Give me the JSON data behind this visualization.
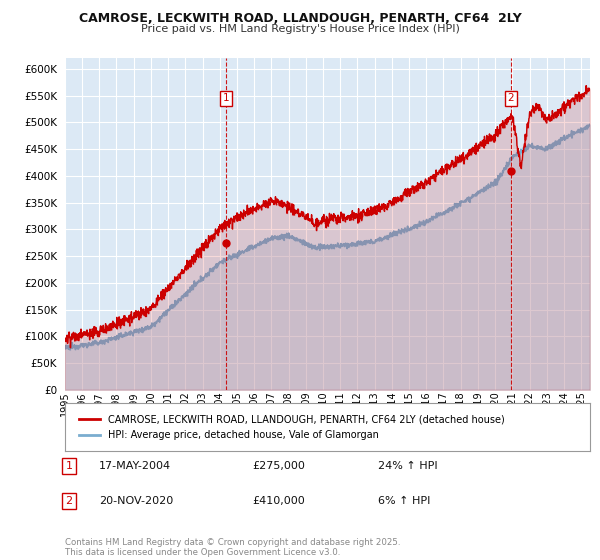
{
  "title1": "CAMROSE, LECKWITH ROAD, LLANDOUGH, PENARTH, CF64  2LY",
  "title2": "Price paid vs. HM Land Registry's House Price Index (HPI)",
  "plot_bg_color": "#dce9f5",
  "ylim": [
    0,
    620000
  ],
  "yticks": [
    0,
    50000,
    100000,
    150000,
    200000,
    250000,
    300000,
    350000,
    400000,
    450000,
    500000,
    550000,
    600000
  ],
  "xlim_start": 1995.0,
  "xlim_end": 2025.5,
  "xtick_years": [
    1995,
    1996,
    1997,
    1998,
    1999,
    2000,
    2001,
    2002,
    2003,
    2004,
    2005,
    2006,
    2007,
    2008,
    2009,
    2010,
    2011,
    2012,
    2013,
    2014,
    2015,
    2016,
    2017,
    2018,
    2019,
    2020,
    2021,
    2022,
    2023,
    2024,
    2025
  ],
  "sale1_x": 2004.375,
  "sale1_y": 275000,
  "sale1_label": "1",
  "sale2_x": 2020.9,
  "sale2_y": 410000,
  "sale2_label": "2",
  "red_color": "#cc0000",
  "blue_color": "#7aadcf",
  "blue_fill_color": "#aac8e0",
  "legend_label1": "CAMROSE, LECKWITH ROAD, LLANDOUGH, PENARTH, CF64 2LY (detached house)",
  "legend_label2": "HPI: Average price, detached house, Vale of Glamorgan",
  "annotation1_date": "17-MAY-2004",
  "annotation1_price": "£275,000",
  "annotation1_hpi": "24% ↑ HPI",
  "annotation2_date": "20-NOV-2020",
  "annotation2_price": "£410,000",
  "annotation2_hpi": "6% ↑ HPI",
  "footer_text": "Contains HM Land Registry data © Crown copyright and database right 2025.\nThis data is licensed under the Open Government Licence v3.0.",
  "grid_color": "#ffffff",
  "dashed_line_color": "#cc0000"
}
